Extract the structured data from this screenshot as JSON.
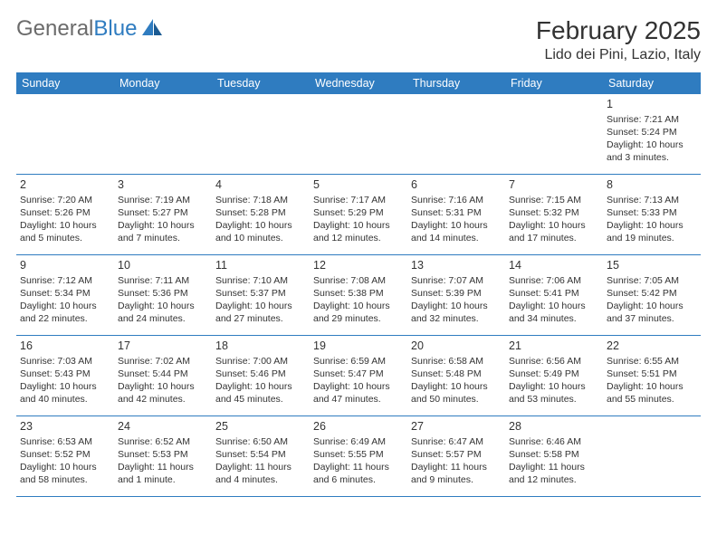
{
  "logo": {
    "text1": "General",
    "text2": "Blue"
  },
  "title": "February 2025",
  "location": "Lido dei Pini, Lazio, Italy",
  "colors": {
    "header_bg": "#2f7cc0",
    "header_text": "#ffffff",
    "body_text": "#333333",
    "logo_gray": "#6b6b6b",
    "rule": "#2f7cc0"
  },
  "days_of_week": [
    "Sunday",
    "Monday",
    "Tuesday",
    "Wednesday",
    "Thursday",
    "Friday",
    "Saturday"
  ],
  "weeks": [
    [
      null,
      null,
      null,
      null,
      null,
      null,
      {
        "n": "1",
        "sr": "Sunrise: 7:21 AM",
        "ss": "Sunset: 5:24 PM",
        "dl": "Daylight: 10 hours and 3 minutes."
      }
    ],
    [
      {
        "n": "2",
        "sr": "Sunrise: 7:20 AM",
        "ss": "Sunset: 5:26 PM",
        "dl": "Daylight: 10 hours and 5 minutes."
      },
      {
        "n": "3",
        "sr": "Sunrise: 7:19 AM",
        "ss": "Sunset: 5:27 PM",
        "dl": "Daylight: 10 hours and 7 minutes."
      },
      {
        "n": "4",
        "sr": "Sunrise: 7:18 AM",
        "ss": "Sunset: 5:28 PM",
        "dl": "Daylight: 10 hours and 10 minutes."
      },
      {
        "n": "5",
        "sr": "Sunrise: 7:17 AM",
        "ss": "Sunset: 5:29 PM",
        "dl": "Daylight: 10 hours and 12 minutes."
      },
      {
        "n": "6",
        "sr": "Sunrise: 7:16 AM",
        "ss": "Sunset: 5:31 PM",
        "dl": "Daylight: 10 hours and 14 minutes."
      },
      {
        "n": "7",
        "sr": "Sunrise: 7:15 AM",
        "ss": "Sunset: 5:32 PM",
        "dl": "Daylight: 10 hours and 17 minutes."
      },
      {
        "n": "8",
        "sr": "Sunrise: 7:13 AM",
        "ss": "Sunset: 5:33 PM",
        "dl": "Daylight: 10 hours and 19 minutes."
      }
    ],
    [
      {
        "n": "9",
        "sr": "Sunrise: 7:12 AM",
        "ss": "Sunset: 5:34 PM",
        "dl": "Daylight: 10 hours and 22 minutes."
      },
      {
        "n": "10",
        "sr": "Sunrise: 7:11 AM",
        "ss": "Sunset: 5:36 PM",
        "dl": "Daylight: 10 hours and 24 minutes."
      },
      {
        "n": "11",
        "sr": "Sunrise: 7:10 AM",
        "ss": "Sunset: 5:37 PM",
        "dl": "Daylight: 10 hours and 27 minutes."
      },
      {
        "n": "12",
        "sr": "Sunrise: 7:08 AM",
        "ss": "Sunset: 5:38 PM",
        "dl": "Daylight: 10 hours and 29 minutes."
      },
      {
        "n": "13",
        "sr": "Sunrise: 7:07 AM",
        "ss": "Sunset: 5:39 PM",
        "dl": "Daylight: 10 hours and 32 minutes."
      },
      {
        "n": "14",
        "sr": "Sunrise: 7:06 AM",
        "ss": "Sunset: 5:41 PM",
        "dl": "Daylight: 10 hours and 34 minutes."
      },
      {
        "n": "15",
        "sr": "Sunrise: 7:05 AM",
        "ss": "Sunset: 5:42 PM",
        "dl": "Daylight: 10 hours and 37 minutes."
      }
    ],
    [
      {
        "n": "16",
        "sr": "Sunrise: 7:03 AM",
        "ss": "Sunset: 5:43 PM",
        "dl": "Daylight: 10 hours and 40 minutes."
      },
      {
        "n": "17",
        "sr": "Sunrise: 7:02 AM",
        "ss": "Sunset: 5:44 PM",
        "dl": "Daylight: 10 hours and 42 minutes."
      },
      {
        "n": "18",
        "sr": "Sunrise: 7:00 AM",
        "ss": "Sunset: 5:46 PM",
        "dl": "Daylight: 10 hours and 45 minutes."
      },
      {
        "n": "19",
        "sr": "Sunrise: 6:59 AM",
        "ss": "Sunset: 5:47 PM",
        "dl": "Daylight: 10 hours and 47 minutes."
      },
      {
        "n": "20",
        "sr": "Sunrise: 6:58 AM",
        "ss": "Sunset: 5:48 PM",
        "dl": "Daylight: 10 hours and 50 minutes."
      },
      {
        "n": "21",
        "sr": "Sunrise: 6:56 AM",
        "ss": "Sunset: 5:49 PM",
        "dl": "Daylight: 10 hours and 53 minutes."
      },
      {
        "n": "22",
        "sr": "Sunrise: 6:55 AM",
        "ss": "Sunset: 5:51 PM",
        "dl": "Daylight: 10 hours and 55 minutes."
      }
    ],
    [
      {
        "n": "23",
        "sr": "Sunrise: 6:53 AM",
        "ss": "Sunset: 5:52 PM",
        "dl": "Daylight: 10 hours and 58 minutes."
      },
      {
        "n": "24",
        "sr": "Sunrise: 6:52 AM",
        "ss": "Sunset: 5:53 PM",
        "dl": "Daylight: 11 hours and 1 minute."
      },
      {
        "n": "25",
        "sr": "Sunrise: 6:50 AM",
        "ss": "Sunset: 5:54 PM",
        "dl": "Daylight: 11 hours and 4 minutes."
      },
      {
        "n": "26",
        "sr": "Sunrise: 6:49 AM",
        "ss": "Sunset: 5:55 PM",
        "dl": "Daylight: 11 hours and 6 minutes."
      },
      {
        "n": "27",
        "sr": "Sunrise: 6:47 AM",
        "ss": "Sunset: 5:57 PM",
        "dl": "Daylight: 11 hours and 9 minutes."
      },
      {
        "n": "28",
        "sr": "Sunrise: 6:46 AM",
        "ss": "Sunset: 5:58 PM",
        "dl": "Daylight: 11 hours and 12 minutes."
      },
      null
    ]
  ]
}
